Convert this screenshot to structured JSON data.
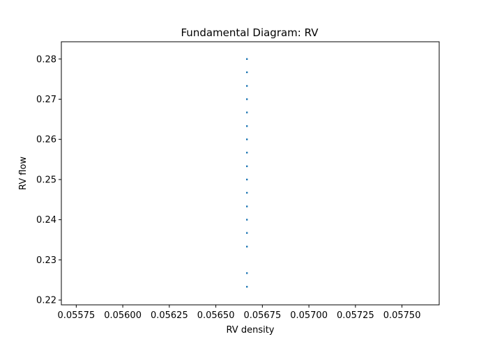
{
  "chart_data": {
    "type": "scatter",
    "title": "Fundamental Diagram: RV",
    "xlabel": "RV density",
    "ylabel": "RV flow",
    "xlim": [
      0.05567,
      0.0577
    ],
    "ylim": [
      0.2188,
      0.2843
    ],
    "grid": false,
    "color": "#1f77b4",
    "xticks": [
      {
        "value": 0.05575,
        "label": "0.05575"
      },
      {
        "value": 0.056,
        "label": "0.05600"
      },
      {
        "value": 0.05625,
        "label": "0.05625"
      },
      {
        "value": 0.0565,
        "label": "0.05650"
      },
      {
        "value": 0.05675,
        "label": "0.05675"
      },
      {
        "value": 0.057,
        "label": "0.05700"
      },
      {
        "value": 0.05725,
        "label": "0.05725"
      },
      {
        "value": 0.0575,
        "label": "0.05750"
      }
    ],
    "yticks": [
      {
        "value": 0.22,
        "label": "0.22"
      },
      {
        "value": 0.23,
        "label": "0.23"
      },
      {
        "value": 0.24,
        "label": "0.24"
      },
      {
        "value": 0.25,
        "label": "0.25"
      },
      {
        "value": 0.26,
        "label": "0.26"
      },
      {
        "value": 0.27,
        "label": "0.27"
      },
      {
        "value": 0.28,
        "label": "0.28"
      }
    ],
    "points": [
      {
        "x": 0.056667,
        "y": 0.2233
      },
      {
        "x": 0.056667,
        "y": 0.2267
      },
      {
        "x": 0.056667,
        "y": 0.2333
      },
      {
        "x": 0.056667,
        "y": 0.2367
      },
      {
        "x": 0.056667,
        "y": 0.24
      },
      {
        "x": 0.056667,
        "y": 0.2433
      },
      {
        "x": 0.056667,
        "y": 0.2467
      },
      {
        "x": 0.056667,
        "y": 0.25
      },
      {
        "x": 0.056667,
        "y": 0.2533
      },
      {
        "x": 0.056667,
        "y": 0.2567
      },
      {
        "x": 0.056667,
        "y": 0.26
      },
      {
        "x": 0.056667,
        "y": 0.2633
      },
      {
        "x": 0.056667,
        "y": 0.2667
      },
      {
        "x": 0.056667,
        "y": 0.27
      },
      {
        "x": 0.056667,
        "y": 0.2733
      },
      {
        "x": 0.056667,
        "y": 0.2767
      },
      {
        "x": 0.056667,
        "y": 0.28
      }
    ]
  }
}
